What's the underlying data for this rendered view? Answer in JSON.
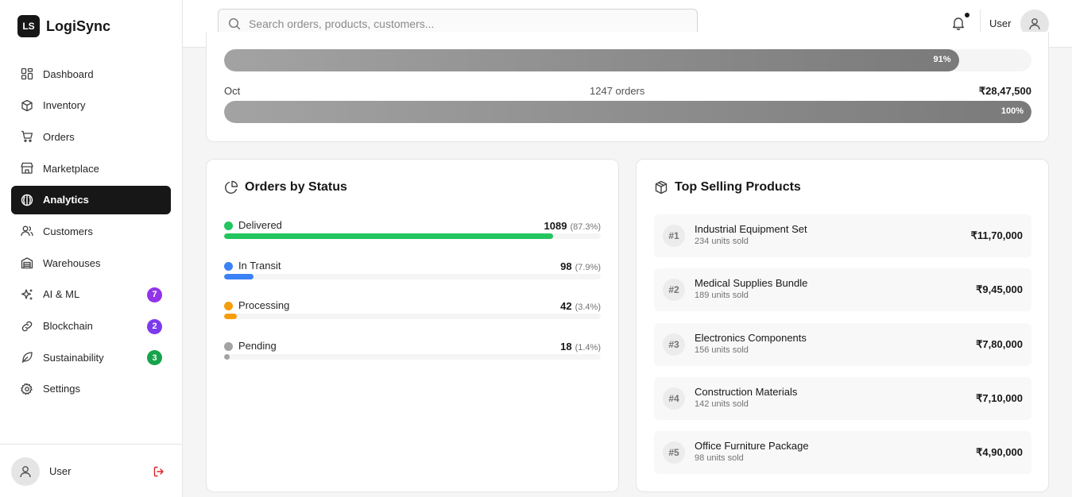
{
  "brand": {
    "logo": "LS",
    "name": "LogiSync"
  },
  "sidebar": {
    "items": [
      {
        "label": "Dashboard",
        "icon": "dashboard-icon"
      },
      {
        "label": "Inventory",
        "icon": "box-icon"
      },
      {
        "label": "Orders",
        "icon": "cart-icon"
      },
      {
        "label": "Marketplace",
        "icon": "store-icon"
      },
      {
        "label": "Analytics",
        "icon": "analytics-icon",
        "active": true
      },
      {
        "label": "Customers",
        "icon": "users-icon"
      },
      {
        "label": "Warehouses",
        "icon": "warehouse-icon"
      },
      {
        "label": "AI & ML",
        "icon": "sparkles-icon",
        "badge": "7",
        "badge_color": "#9333ea"
      },
      {
        "label": "Blockchain",
        "icon": "link-icon",
        "badge": "2",
        "badge_color": "#7c3aed"
      },
      {
        "label": "Sustainability",
        "icon": "leaf-icon",
        "badge": "3",
        "badge_color": "#16a34a"
      },
      {
        "label": "Settings",
        "icon": "gear-icon"
      }
    ],
    "footer": {
      "user": "User"
    }
  },
  "header": {
    "search_placeholder": "Search orders, products, customers...",
    "user": "User"
  },
  "monthly": {
    "prev_bar_pct": 91,
    "prev_bar_label": "91%",
    "oct": {
      "month": "Oct",
      "orders": "1247 orders",
      "revenue": "₹28,47,500",
      "pct": 100,
      "pct_label": "100%"
    }
  },
  "status_card": {
    "title": "Orders by Status",
    "items": [
      {
        "label": "Delivered",
        "count": "1089",
        "pct_label": "(87.3%)",
        "pct": 87.3,
        "color": "#22c55e"
      },
      {
        "label": "In Transit",
        "count": "98",
        "pct_label": "(7.9%)",
        "pct": 7.9,
        "color": "#3b82f6"
      },
      {
        "label": "Processing",
        "count": "42",
        "pct_label": "(3.4%)",
        "pct": 3.4,
        "color": "#f59e0b"
      },
      {
        "label": "Pending",
        "count": "18",
        "pct_label": "(1.4%)",
        "pct": 1.4,
        "color": "#a3a3a3"
      }
    ]
  },
  "products_card": {
    "title": "Top Selling Products",
    "items": [
      {
        "rank": "#1",
        "name": "Industrial Equipment Set",
        "units": "234 units sold",
        "revenue": "₹11,70,000"
      },
      {
        "rank": "#2",
        "name": "Medical Supplies Bundle",
        "units": "189 units sold",
        "revenue": "₹9,45,000"
      },
      {
        "rank": "#3",
        "name": "Electronics Components",
        "units": "156 units sold",
        "revenue": "₹7,80,000"
      },
      {
        "rank": "#4",
        "name": "Construction Materials",
        "units": "142 units sold",
        "revenue": "₹7,10,000"
      },
      {
        "rank": "#5",
        "name": "Office Furniture Package",
        "units": "98 units sold",
        "revenue": "₹4,90,000"
      }
    ]
  }
}
